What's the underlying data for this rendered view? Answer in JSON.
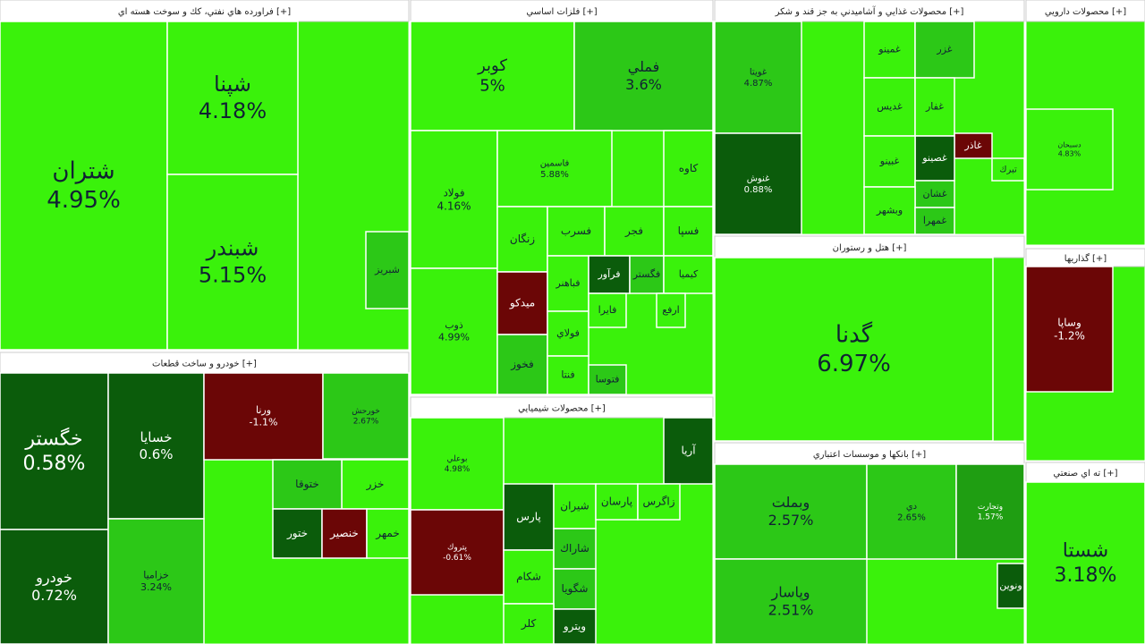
{
  "sectors": [
    {
      "title": "فراورده هاي نفتي، كك و سوخت هسته اي [+]",
      "tiles": [
        {
          "name": "شتران",
          "change": "4.95%"
        },
        {
          "name": "شپنا",
          "change": "4.18%"
        },
        {
          "name": "شبندر",
          "change": "5.15%"
        },
        {
          "name": "شبريز"
        }
      ]
    },
    {
      "title": "فلزات اساسي [+]",
      "tiles": [
        {
          "name": "كوبر",
          "change": "5%"
        },
        {
          "name": "فملي",
          "change": "3.6%"
        },
        {
          "name": "فولاد",
          "change": "4.16%"
        },
        {
          "name": "فاسمين",
          "change": "5.88%"
        },
        {
          "name": "كاوه"
        },
        {
          "name": "ذوب",
          "change": "4.99%"
        },
        {
          "name": "زنگان"
        },
        {
          "name": "فسرب"
        },
        {
          "name": "فجر"
        },
        {
          "name": "فسپا"
        },
        {
          "name": "ميدكو"
        },
        {
          "name": "فخوز"
        },
        {
          "name": "فباهنر"
        },
        {
          "name": "فولاي"
        },
        {
          "name": "فنتا"
        },
        {
          "name": "فرآور"
        },
        {
          "name": "فگستر"
        },
        {
          "name": "كيميا"
        },
        {
          "name": "فايرا"
        },
        {
          "name": "ارفع"
        },
        {
          "name": "فتوسا"
        }
      ]
    },
    {
      "title": "محصولات غذايي و آشاميدني به جز قند و شكر [+]",
      "tiles": [
        {
          "name": "غويتا",
          "change": "4.87%"
        },
        {
          "name": "غنوش",
          "change": "0.88%"
        },
        {
          "name": "غمينو"
        },
        {
          "name": "غزر"
        },
        {
          "name": "غديس"
        },
        {
          "name": "غفار"
        },
        {
          "name": "غاذر"
        },
        {
          "name": "غصينو"
        },
        {
          "name": "غبينو"
        },
        {
          "name": "غشان"
        },
        {
          "name": "وبشهر"
        },
        {
          "name": "غمهرا"
        },
        {
          "name": "تبرك"
        }
      ]
    },
    {
      "title": "هتل و رستوران [+]",
      "tiles": [
        {
          "name": "گدنا",
          "change": "6.97%"
        }
      ]
    },
    {
      "title": "بانكها و موسسات اعتباري [+]",
      "tiles": [
        {
          "name": "وبملت",
          "change": "2.57%"
        },
        {
          "name": "وپاسار",
          "change": "2.51%"
        },
        {
          "name": "دي",
          "change": "2.65%"
        },
        {
          "name": "وتجارت",
          "change": "1.57%"
        },
        {
          "name": "ونوين"
        }
      ]
    },
    {
      "title": "خودرو و ساخت قطعات [+]",
      "tiles": [
        {
          "name": "خگستر",
          "change": "0.58%"
        },
        {
          "name": "خودرو",
          "change": "0.72%"
        },
        {
          "name": "خسايا",
          "change": "0.6%"
        },
        {
          "name": "خزاميا",
          "change": "3.24%"
        },
        {
          "name": "ورنا",
          "change": "-1.1%"
        },
        {
          "name": "خورحش",
          "change": "2.67%"
        },
        {
          "name": "خزر"
        },
        {
          "name": "ختوقا"
        },
        {
          "name": "ختور"
        },
        {
          "name": "خنصير"
        },
        {
          "name": "خمهر"
        }
      ]
    },
    {
      "title": "محصولات شيميايي [+]",
      "tiles": [
        {
          "name": "بوعلي",
          "change": "4.98%"
        },
        {
          "name": "پتروك",
          "change": "-0.61%"
        },
        {
          "name": "آريا"
        },
        {
          "name": "پارس"
        },
        {
          "name": "شيران"
        },
        {
          "name": "پارسان"
        },
        {
          "name": "زاگرس"
        },
        {
          "name": "شكام"
        },
        {
          "name": "شاراك"
        },
        {
          "name": "شگويا"
        },
        {
          "name": "كلر"
        },
        {
          "name": "ويترو"
        }
      ]
    },
    {
      "title": "محصولات دارويي [+]",
      "tiles": [
        {
          "name": "دسبحان",
          "change": "4.83%"
        }
      ]
    },
    {
      "title": "گذاريها [+]",
      "tiles": [
        {
          "name": "وساپا",
          "change": "-1.2%"
        }
      ]
    },
    {
      "title": "ته اي صنعتي [+]",
      "tiles": [
        {
          "name": "شستا",
          "change": "3.18%"
        }
      ]
    }
  ]
}
